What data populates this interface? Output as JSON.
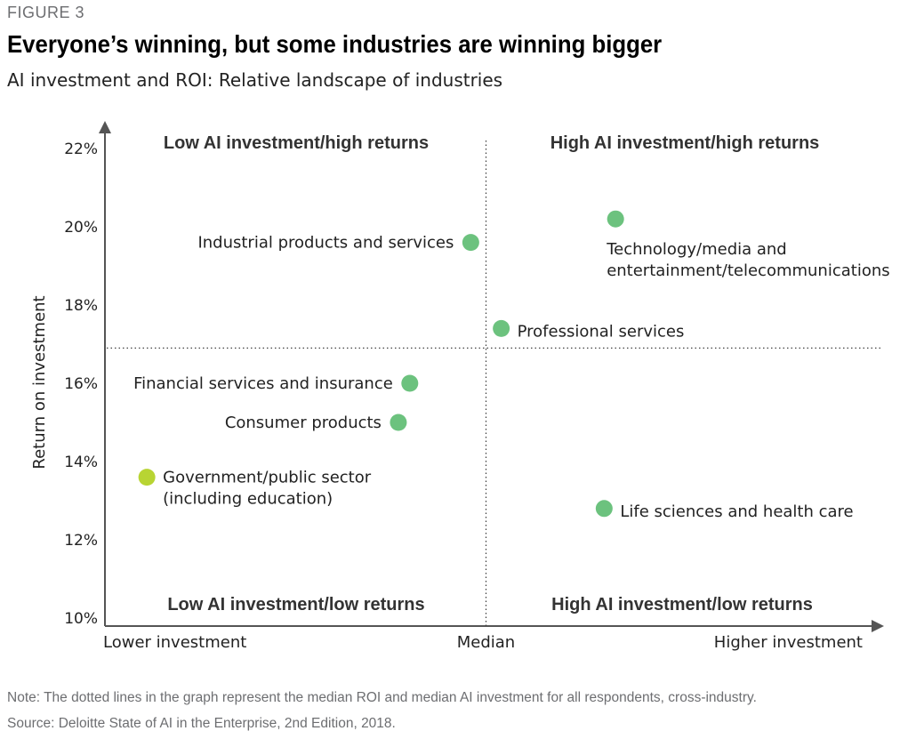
{
  "figure_label": "FIGURE 3",
  "title": "Everyone’s winning, but some industries are winning bigger",
  "subtitle": "AI investment and ROI: Relative landscape of industries",
  "note": "Note: The dotted lines in the graph represent the median ROI and median AI investment for all respondents, cross-industry.",
  "source": "Source: Deloitte State of AI in the Enterprise, 2nd Edition, 2018.",
  "colors": {
    "green": "#6cc27e",
    "light_green": "#b8d433",
    "axis": "#555555",
    "text": "#222222"
  },
  "chart_data": {
    "type": "scatter",
    "xlabel": "",
    "ylabel": "Return on investment",
    "x_ticks": [
      "Lower investment",
      "Median",
      "Higher investment"
    ],
    "x_scale": "relative (no numeric values)",
    "x_median": 0.5,
    "xlim": [
      0,
      1
    ],
    "ylim": [
      10,
      22
    ],
    "yticks": [
      10,
      12,
      14,
      16,
      18,
      20,
      22
    ],
    "ytick_labels": [
      "10%",
      "12%",
      "14%",
      "16%",
      "18%",
      "20%",
      "22%"
    ],
    "y_median": 16.9,
    "quadrants": {
      "top_left": "Low AI investment/high returns",
      "top_right": "High AI investment/high returns",
      "bottom_left": "Low AI investment/low returns",
      "bottom_right": "High AI investment/low returns"
    },
    "points": [
      {
        "label": [
          "Industrial products and services"
        ],
        "x": 0.48,
        "y": 19.6,
        "color": "#6cc27e",
        "label_side": "left"
      },
      {
        "label": [
          "Technology/media and",
          "entertainment/telecommunications"
        ],
        "x": 0.67,
        "y": 20.2,
        "color": "#6cc27e",
        "label_side": "below"
      },
      {
        "label": [
          "Professional services"
        ],
        "x": 0.52,
        "y": 17.4,
        "color": "#6cc27e",
        "label_side": "right"
      },
      {
        "label": [
          "Financial services and insurance"
        ],
        "x": 0.4,
        "y": 16.0,
        "color": "#6cc27e",
        "label_side": "left"
      },
      {
        "label": [
          "Consumer products"
        ],
        "x": 0.385,
        "y": 15.0,
        "color": "#6cc27e",
        "label_side": "left"
      },
      {
        "label": [
          "Government/public sector",
          "(including education)"
        ],
        "x": 0.055,
        "y": 13.6,
        "color": "#b8d433",
        "label_side": "right"
      },
      {
        "label": [
          "Life sciences and health care"
        ],
        "x": 0.655,
        "y": 12.8,
        "color": "#6cc27e",
        "label_side": "right"
      }
    ]
  }
}
